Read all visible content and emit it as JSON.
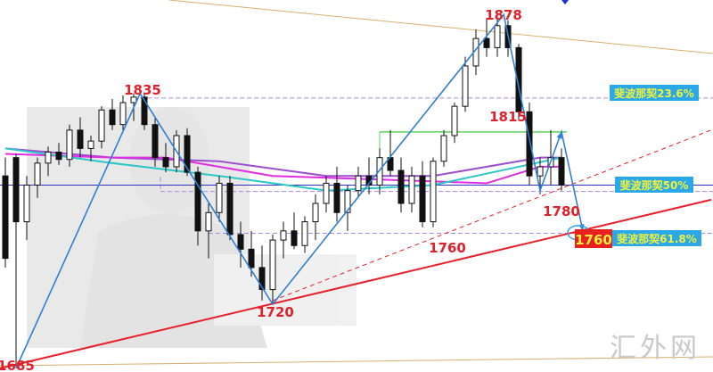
{
  "chart_data": {
    "type": "candlestick",
    "ylim": [
      1683,
      1886
    ],
    "price_labels": {
      "p1685": "1685",
      "p1835": "1835",
      "p1720": "1720",
      "p1878": "1878",
      "p1815": "1815",
      "p1760a": "1760",
      "p1780": "1780",
      "p1760b": "1760"
    },
    "fib_labels": {
      "f236": "斐波那契23.6%",
      "f50": "斐波那契50%",
      "f618": "斐波那契61.8%"
    },
    "fib_levels": {
      "f236": 1832.5,
      "f50": 1781.5,
      "f618": 1758.7
    },
    "blue_level": 1785,
    "green_level": {
      "price": 1814,
      "from": 35,
      "to": 52
    },
    "zigzag": [
      [
        1,
        1685
      ],
      [
        12.6,
        1835
      ],
      [
        25,
        1720
      ],
      [
        46.6,
        1878
      ],
      [
        50,
        1782
      ],
      [
        52,
        1814
      ],
      [
        54,
        1760
      ]
    ],
    "trend_solid": [
      [
        -0.5,
        1685
      ],
      [
        66,
        1777
      ]
    ],
    "trend_dashed": [
      [
        25,
        1722
      ],
      [
        66,
        1815
      ]
    ],
    "candles": [
      [
        1790,
        1800,
        1740,
        1745
      ],
      [
        1800,
        1802,
        1686,
        1765
      ],
      [
        1765,
        1790,
        1755,
        1785
      ],
      [
        1785,
        1800,
        1778,
        1797
      ],
      [
        1797,
        1806,
        1790,
        1803
      ],
      [
        1803,
        1808,
        1796,
        1799
      ],
      [
        1799,
        1818,
        1795,
        1815
      ],
      [
        1815,
        1822,
        1800,
        1805
      ],
      [
        1805,
        1812,
        1798,
        1809
      ],
      [
        1809,
        1828,
        1805,
        1826
      ],
      [
        1826,
        1832,
        1815,
        1818
      ],
      [
        1818,
        1834,
        1815,
        1830
      ],
      [
        1830,
        1835,
        1820,
        1833
      ],
      [
        1833,
        1835,
        1815,
        1818
      ],
      [
        1818,
        1822,
        1795,
        1800
      ],
      [
        1800,
        1808,
        1792,
        1795
      ],
      [
        1795,
        1815,
        1792,
        1812
      ],
      [
        1812,
        1816,
        1790,
        1792
      ],
      [
        1792,
        1795,
        1752,
        1760
      ],
      [
        1760,
        1775,
        1745,
        1770
      ],
      [
        1770,
        1790,
        1765,
        1786
      ],
      [
        1786,
        1790,
        1755,
        1758
      ],
      [
        1758,
        1765,
        1740,
        1750
      ],
      [
        1750,
        1760,
        1735,
        1740
      ],
      [
        1740,
        1752,
        1722,
        1728
      ],
      [
        1728,
        1758,
        1720,
        1755
      ],
      [
        1755,
        1765,
        1745,
        1760
      ],
      [
        1760,
        1770,
        1750,
        1752
      ],
      [
        1752,
        1768,
        1748,
        1765
      ],
      [
        1765,
        1780,
        1755,
        1775
      ],
      [
        1775,
        1790,
        1770,
        1786
      ],
      [
        1786,
        1795,
        1765,
        1770
      ],
      [
        1770,
        1785,
        1760,
        1782
      ],
      [
        1782,
        1795,
        1778,
        1790
      ],
      [
        1790,
        1800,
        1780,
        1785
      ],
      [
        1785,
        1805,
        1780,
        1800
      ],
      [
        1800,
        1815,
        1790,
        1793
      ],
      [
        1793,
        1800,
        1770,
        1775
      ],
      [
        1775,
        1795,
        1770,
        1790
      ],
      [
        1790,
        1798,
        1762,
        1765
      ],
      [
        1765,
        1800,
        1762,
        1798
      ],
      [
        1798,
        1815,
        1795,
        1812
      ],
      [
        1812,
        1830,
        1808,
        1828
      ],
      [
        1828,
        1855,
        1825,
        1850
      ],
      [
        1850,
        1870,
        1845,
        1865
      ],
      [
        1865,
        1876,
        1855,
        1860
      ],
      [
        1860,
        1878,
        1855,
        1872
      ],
      [
        1872,
        1875,
        1855,
        1860
      ],
      [
        1860,
        1862,
        1820,
        1825
      ],
      [
        1825,
        1830,
        1785,
        1790
      ],
      [
        1790,
        1800,
        1780,
        1795
      ],
      [
        1795,
        1815,
        1785,
        1800
      ],
      [
        1800,
        1805,
        1782,
        1785
      ]
    ],
    "moving_averages": [
      {
        "color": "#9b4fd0",
        "points": [
          [
            0,
            1805
          ],
          [
            10,
            1800
          ],
          [
            20,
            1798
          ],
          [
            30,
            1790
          ],
          [
            40,
            1790
          ],
          [
            50,
            1800
          ],
          [
            52,
            1800
          ]
        ]
      },
      {
        "color": "#e02ee0",
        "points": [
          [
            0,
            1802
          ],
          [
            10,
            1800
          ],
          [
            15,
            1800
          ],
          [
            25,
            1790
          ],
          [
            35,
            1788
          ],
          [
            45,
            1786
          ],
          [
            50,
            1795
          ],
          [
            52,
            1795
          ]
        ]
      },
      {
        "color": "#2cc7c7",
        "points": [
          [
            0,
            1805
          ],
          [
            10,
            1797
          ],
          [
            20,
            1790
          ],
          [
            30,
            1782
          ],
          [
            40,
            1785
          ],
          [
            48,
            1795
          ],
          [
            52,
            1800
          ]
        ]
      }
    ],
    "colors": {
      "zigzag": "#2f7fd6",
      "trend": "#e8202a",
      "fib": "#a68ae0",
      "green": "#5fd05f",
      "blue_level": "#3030c0",
      "top_line": "#d8b070"
    }
  },
  "watermark": "汇外网"
}
